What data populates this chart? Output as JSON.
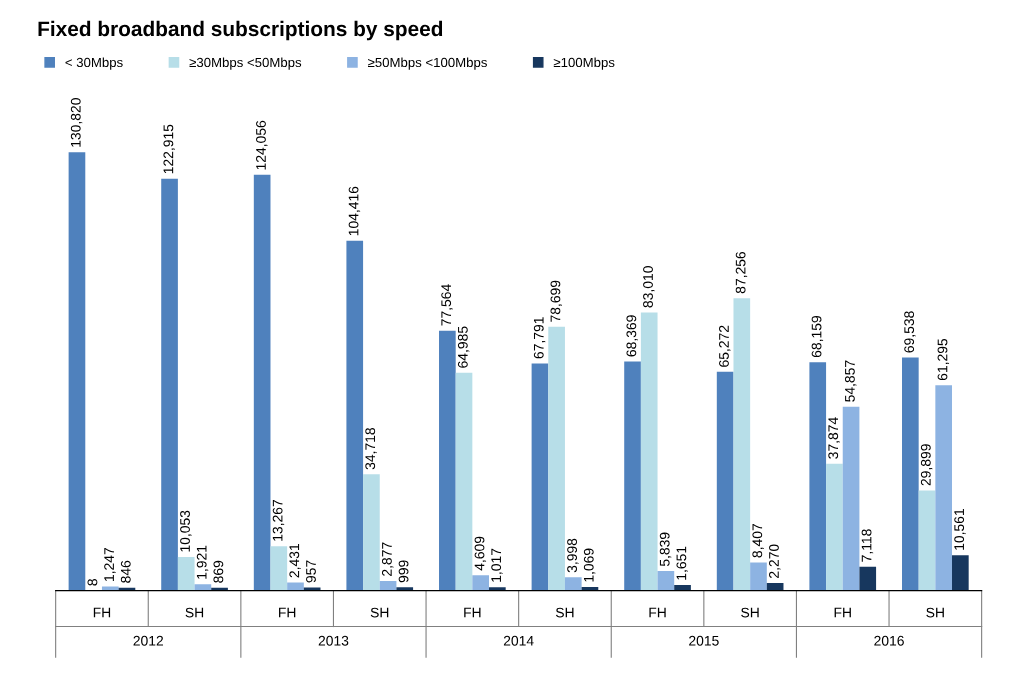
{
  "chart_data": {
    "type": "bar",
    "title": "Fixed broadband subscriptions by speed",
    "categories": [
      "FH",
      "SH",
      "FH",
      "SH",
      "FH",
      "SH",
      "FH",
      "SH",
      "FH",
      "SH"
    ],
    "annotations": [
      "2012",
      "2013",
      "2014",
      "2015",
      "2016"
    ],
    "legend": "top left",
    "grid": false,
    "series": [
      {
        "name": "< 30Mbps",
        "color": "#4f81bd",
        "values": [
          130820,
          122915,
          124056,
          104416,
          77564,
          67791,
          68369,
          65272,
          68159,
          69538
        ],
        "value_labels": [
          "130,820",
          "122,915",
          "124,056",
          "104,416",
          "77,564",
          "67,791",
          "68,369",
          "65,272",
          "68,159",
          "69,538"
        ]
      },
      {
        "name": "≥30Mbps <50Mbps",
        "color": "#b7dee8",
        "values": [
          8,
          10053,
          13267,
          34718,
          64985,
          78699,
          83010,
          87256,
          37874,
          29899
        ],
        "value_labels": [
          "8",
          "10,053",
          "13,267",
          "34,718",
          "64,985",
          "78,699",
          "83,010",
          "87,256",
          "37,874",
          "29,899"
        ]
      },
      {
        "name": "≥50Mbps <100Mbps",
        "color": "#8db3e2",
        "values": [
          1247,
          1921,
          2431,
          2877,
          4609,
          3998,
          5839,
          8407,
          54857,
          61295
        ],
        "value_labels": [
          "1,247",
          "1,921",
          "2,431",
          "2,877",
          "4,609",
          "3,998",
          "5,839",
          "8,407",
          "54,857",
          "61,295"
        ]
      },
      {
        "name": "≥100Mbps",
        "color": "#17375e",
        "values": [
          846,
          869,
          957,
          999,
          1017,
          1069,
          1651,
          2270,
          7118,
          10561
        ],
        "value_labels": [
          "846",
          "869",
          "957",
          "999",
          "1,017",
          "1,069",
          "1,651",
          "2,270",
          "7,118",
          "10,561"
        ]
      }
    ]
  }
}
